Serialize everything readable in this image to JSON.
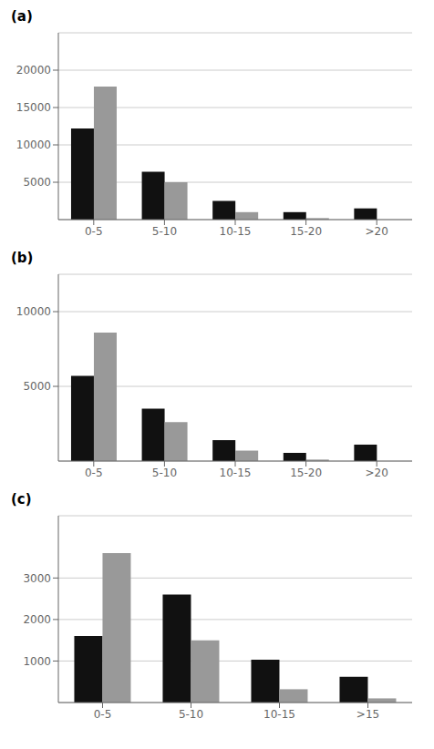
{
  "chart_data": [
    {
      "type": "bar",
      "title": "(a)",
      "categories": [
        "0-5",
        "5-10",
        "10-15",
        "15-20",
        ">20"
      ],
      "series": [
        {
          "color": "#111111",
          "values": [
            12200,
            6400,
            2500,
            1000,
            1500
          ]
        },
        {
          "color": "#999999",
          "values": [
            17800,
            5000,
            1000,
            200,
            0
          ]
        }
      ],
      "ylim": [
        0,
        25000
      ],
      "yticks": [
        5000,
        10000,
        15000,
        20000
      ],
      "grid": true
    },
    {
      "type": "bar",
      "title": "(b)",
      "categories": [
        "0-5",
        "5-10",
        "10-15",
        "15-20",
        ">20"
      ],
      "series": [
        {
          "color": "#111111",
          "values": [
            5700,
            3500,
            1400,
            550,
            1100
          ]
        },
        {
          "color": "#999999",
          "values": [
            8600,
            2600,
            700,
            100,
            0
          ]
        }
      ],
      "ylim": [
        0,
        12500
      ],
      "yticks": [
        5000,
        10000
      ],
      "grid": true
    },
    {
      "type": "bar",
      "title": "(c)",
      "categories": [
        "0-5",
        "5-10",
        "10-15",
        ">15"
      ],
      "series": [
        {
          "color": "#111111",
          "values": [
            1600,
            2600,
            1030,
            620
          ]
        },
        {
          "color": "#999999",
          "values": [
            3600,
            1500,
            320,
            100
          ]
        }
      ],
      "ylim": [
        0,
        4500
      ],
      "yticks": [
        1000,
        2000,
        3000
      ],
      "grid": true
    }
  ]
}
